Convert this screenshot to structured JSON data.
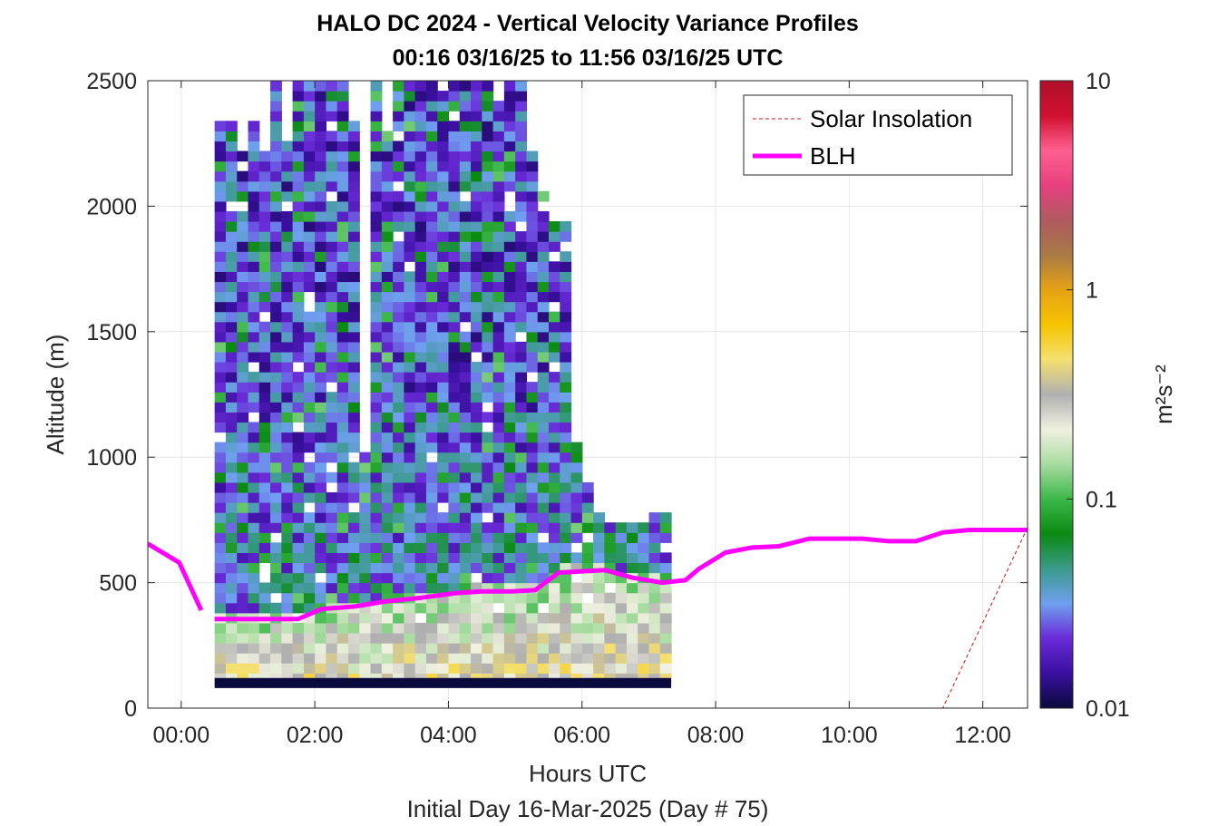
{
  "chart_data": {
    "type": "heatmap",
    "title": "HALO DC 2024 - Vertical Velocity Variance Profiles",
    "subtitle": "00:16 03/16/25 to 11:56 03/16/25  UTC",
    "xlabel": "Hours UTC",
    "xlabel2": "Initial Day 16-Mar-2025 (Day # 75)",
    "ylabel": "Altitude (m)",
    "xlim": [
      -0.5,
      12.67
    ],
    "ylim": [
      0,
      2500
    ],
    "x_ticks": [
      0,
      2,
      4,
      6,
      8,
      10,
      12
    ],
    "x_tick_labels": [
      "00:00",
      "02:00",
      "04:00",
      "06:00",
      "08:00",
      "10:00",
      "12:00"
    ],
    "y_ticks": [
      0,
      500,
      1000,
      1500,
      2000,
      2500
    ],
    "y_tick_labels": [
      "0",
      "500",
      "1000",
      "1500",
      "2000",
      "2500"
    ],
    "grid": true,
    "legend_position": "top-right",
    "colorbar": {
      "label": "m²s⁻²",
      "scale": "log",
      "range": [
        0.01,
        10
      ],
      "ticks": [
        0.01,
        0.1,
        1,
        10
      ],
      "tick_labels": [
        "0.01",
        "0.1",
        "1",
        "10"
      ],
      "colors": [
        "#0a0a3c",
        "#3a0fa0",
        "#6a2bd8",
        "#6fa0f0",
        "#3a9a8a",
        "#0b8a12",
        "#3cb84a",
        "#a8dca0",
        "#f0f0e0",
        "#b0b0b0",
        "#f5e070",
        "#f5c400",
        "#e6a215",
        "#a87a45",
        "#b05a60",
        "#e84080",
        "#ff6090",
        "#d01030",
        "#b0102a"
      ]
    },
    "heatmap": {
      "time_start_hours": 0.5,
      "time_step_hours": 0.1667,
      "altitude_start_m": 100,
      "altitude_step_m": 40,
      "altitude_max_m": 2500,
      "cutoff_top_m": [
        2340,
        2320,
        2200,
        2340,
        2220,
        2500,
        2240,
        2480,
        2500,
        2500,
        2500,
        2500,
        2340,
        1000,
        2500,
        2300,
        2480,
        2500,
        2500,
        2500,
        2460,
        2500,
        2500,
        2500,
        2500,
        2420,
        2500,
        2500,
        2200,
        2060,
        1920,
        1920,
        1040,
        880,
        760,
        740,
        740,
        740,
        740,
        780,
        780
      ],
      "sample_values_log10": [
        [
          -1.05,
          -0.95,
          -0.6,
          -0.7,
          -0.8,
          -0.5,
          -0.3,
          -0.6,
          -0.4,
          -0.7
        ],
        [
          -1.2,
          -1.0,
          -0.8,
          -0.5,
          -0.9,
          -0.6,
          -0.5,
          -0.7,
          -0.6,
          -0.5
        ],
        [
          -1.5,
          -1.3,
          -1.1,
          -0.9,
          -1.0,
          -0.7,
          -0.6,
          -0.5,
          -0.5,
          -0.4
        ],
        [
          -1.7,
          -1.6,
          -1.4,
          -1.2,
          -1.1,
          -0.9,
          -0.8,
          -0.7,
          -0.6,
          -0.5
        ]
      ]
    },
    "series": [
      {
        "name": "Solar Insolation",
        "style": "dashed",
        "color": "#d01010",
        "x": [
          -0.5,
          11.4,
          12.67
        ],
        "y": [
          0,
          0,
          720
        ]
      },
      {
        "name": "BLH",
        "style": "solid",
        "color": "#ff00ff",
        "x": [
          -0.5,
          -0.03,
          0.3
        ],
        "y": [
          655,
          580,
          390
        ],
        "x2": [
          0.5,
          1.75,
          2.1,
          2.6,
          3.05,
          3.6,
          4.1,
          4.5,
          4.95,
          5.3,
          5.65,
          6.0,
          6.35,
          6.75,
          7.2,
          7.55,
          7.75,
          8.15,
          8.55,
          8.95,
          9.4,
          9.8,
          10.2,
          10.6,
          11.0,
          11.4,
          11.8,
          12.2,
          12.67
        ],
        "y2": [
          355,
          355,
          395,
          405,
          425,
          440,
          458,
          465,
          465,
          470,
          540,
          545,
          550,
          520,
          500,
          510,
          555,
          620,
          640,
          645,
          675,
          675,
          675,
          665,
          665,
          700,
          710,
          710,
          710
        ]
      }
    ],
    "ground_band": {
      "altitude_m": [
        80,
        120
      ],
      "color": "#0a0a3c"
    }
  }
}
